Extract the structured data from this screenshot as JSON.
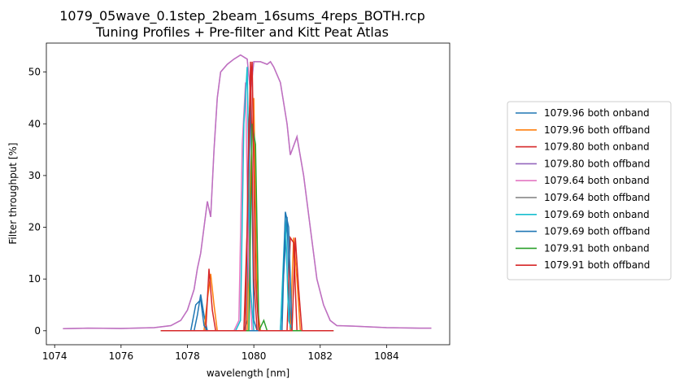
{
  "chart_data": {
    "type": "line",
    "title": "1079_05wave_0.1step_2beam_16sums_4reps_BOTH.rcp",
    "subtitle": "Tuning Profiles + Pre-filter and Kitt Peat Atlas",
    "xlabel": "wavelength [nm]",
    "ylabel": "Filter throughput [%]",
    "xlim": [
      1073.75,
      1085.9
    ],
    "ylim": [
      -2.7,
      55.6
    ],
    "x_ticks": [
      "1074",
      "1076",
      "1078",
      "1080",
      "1082",
      "1084"
    ],
    "y_ticks": [
      "0",
      "10",
      "20",
      "30",
      "40",
      "50"
    ],
    "x_tick_values": [
      1074,
      1076,
      1078,
      1080,
      1082,
      1084
    ],
    "y_tick_values": [
      0,
      10,
      20,
      30,
      40,
      50
    ],
    "grid": false,
    "legend_position": "outside-right",
    "prefilter": {
      "color": "#9467bd",
      "overlay_color": "#e377c2",
      "points": [
        [
          1074.25,
          0.4
        ],
        [
          1075.0,
          0.5
        ],
        [
          1076.0,
          0.45
        ],
        [
          1077.0,
          0.6
        ],
        [
          1077.5,
          1.0
        ],
        [
          1077.8,
          2.0
        ],
        [
          1078.0,
          4.0
        ],
        [
          1078.2,
          8.0
        ],
        [
          1078.3,
          12.0
        ],
        [
          1078.4,
          15.0
        ],
        [
          1078.5,
          20.0
        ],
        [
          1078.6,
          25.0
        ],
        [
          1078.7,
          22.0
        ],
        [
          1078.8,
          35.0
        ],
        [
          1078.9,
          45.0
        ],
        [
          1079.0,
          50.0
        ],
        [
          1079.2,
          51.5
        ],
        [
          1079.4,
          52.5
        ],
        [
          1079.6,
          53.3
        ],
        [
          1079.8,
          52.5
        ],
        [
          1079.9,
          46.0
        ],
        [
          1080.0,
          52.0
        ],
        [
          1080.2,
          52.0
        ],
        [
          1080.4,
          51.5
        ],
        [
          1080.5,
          52.0
        ],
        [
          1080.6,
          51.0
        ],
        [
          1080.8,
          48.0
        ],
        [
          1081.0,
          40.0
        ],
        [
          1081.1,
          34.0
        ],
        [
          1081.3,
          37.5
        ],
        [
          1081.5,
          30.0
        ],
        [
          1081.7,
          20.0
        ],
        [
          1081.9,
          10.0
        ],
        [
          1082.1,
          5.0
        ],
        [
          1082.3,
          2.0
        ],
        [
          1082.5,
          1.0
        ],
        [
          1083.0,
          0.9
        ],
        [
          1084.0,
          0.6
        ],
        [
          1085.0,
          0.5
        ],
        [
          1085.35,
          0.5
        ]
      ]
    },
    "series": [
      {
        "name": "1079.96 both onband",
        "color": "#1f77b4",
        "points": [
          [
            1077.2,
            0
          ],
          [
            1078.2,
            0
          ],
          [
            1078.3,
            3
          ],
          [
            1078.4,
            7
          ],
          [
            1078.5,
            3
          ],
          [
            1078.6,
            0
          ],
          [
            1079.7,
            0
          ],
          [
            1079.8,
            2
          ],
          [
            1079.9,
            48
          ],
          [
            1080.0,
            2
          ],
          [
            1080.1,
            0
          ],
          [
            1080.8,
            0
          ],
          [
            1081.0,
            22
          ],
          [
            1081.1,
            0
          ],
          [
            1082.4,
            0
          ]
        ]
      },
      {
        "name": "1079.96 both offband",
        "color": "#ff7f0e",
        "points": [
          [
            1077.2,
            0
          ],
          [
            1078.5,
            0
          ],
          [
            1078.6,
            6
          ],
          [
            1078.7,
            11
          ],
          [
            1078.8,
            5
          ],
          [
            1078.9,
            0
          ],
          [
            1079.8,
            0
          ],
          [
            1079.9,
            30
          ],
          [
            1080.0,
            45
          ],
          [
            1080.1,
            5
          ],
          [
            1080.2,
            0
          ],
          [
            1081.1,
            0
          ],
          [
            1081.2,
            18
          ],
          [
            1081.3,
            10
          ],
          [
            1081.4,
            0
          ],
          [
            1082.4,
            0
          ]
        ]
      },
      {
        "name": "1079.80 both onband",
        "color": "#d62728",
        "points": [
          [
            1077.2,
            0
          ],
          [
            1078.55,
            0
          ],
          [
            1078.65,
            12
          ],
          [
            1078.75,
            4
          ],
          [
            1078.85,
            0
          ],
          [
            1079.7,
            0
          ],
          [
            1079.8,
            20
          ],
          [
            1079.9,
            52
          ],
          [
            1080.0,
            10
          ],
          [
            1080.1,
            0
          ],
          [
            1081.0,
            0
          ],
          [
            1081.1,
            18
          ],
          [
            1081.2,
            17
          ],
          [
            1081.3,
            0
          ],
          [
            1082.4,
            0
          ]
        ]
      },
      {
        "name": "1079.80 both offband",
        "color": "#9467bd",
        "points": []
      },
      {
        "name": "1079.64 both onband",
        "color": "#e377c2",
        "points": [
          [
            1079.4,
            0
          ],
          [
            1079.55,
            2
          ],
          [
            1079.65,
            36
          ],
          [
            1079.75,
            48
          ],
          [
            1079.85,
            10
          ],
          [
            1079.95,
            0
          ]
        ]
      },
      {
        "name": "1079.64 both offband",
        "color": "#7f7f7f",
        "points": []
      },
      {
        "name": "1079.69 both onband",
        "color": "#17becf",
        "points": [
          [
            1079.45,
            0
          ],
          [
            1079.6,
            2
          ],
          [
            1079.7,
            40
          ],
          [
            1079.8,
            51
          ],
          [
            1079.9,
            8
          ],
          [
            1080.0,
            0
          ],
          [
            1080.8,
            0
          ],
          [
            1080.95,
            22
          ],
          [
            1081.05,
            2
          ],
          [
            1081.15,
            0
          ]
        ]
      },
      {
        "name": "1079.69 both offband",
        "color": "#1f77b4",
        "points": [
          [
            1078.1,
            0
          ],
          [
            1078.25,
            5
          ],
          [
            1078.4,
            6
          ],
          [
            1078.5,
            1
          ],
          [
            1078.6,
            0
          ],
          [
            1080.85,
            0
          ],
          [
            1080.95,
            23
          ],
          [
            1081.05,
            20
          ],
          [
            1081.15,
            0
          ]
        ]
      },
      {
        "name": "1079.91 both onband",
        "color": "#2ca02c",
        "points": [
          [
            1077.2,
            0
          ],
          [
            1079.85,
            0
          ],
          [
            1079.95,
            40
          ],
          [
            1080.05,
            36
          ],
          [
            1080.15,
            0
          ],
          [
            1080.3,
            2
          ],
          [
            1080.4,
            0
          ],
          [
            1082.4,
            0
          ]
        ]
      },
      {
        "name": "1079.91 both offband",
        "color": "#d62728",
        "points": [
          [
            1077.2,
            0
          ],
          [
            1079.75,
            0
          ],
          [
            1079.85,
            40
          ],
          [
            1079.95,
            52
          ],
          [
            1080.05,
            10
          ],
          [
            1080.15,
            0
          ],
          [
            1081.15,
            0
          ],
          [
            1081.25,
            18
          ],
          [
            1081.35,
            8
          ],
          [
            1081.45,
            0
          ],
          [
            1082.4,
            0
          ]
        ]
      }
    ]
  }
}
